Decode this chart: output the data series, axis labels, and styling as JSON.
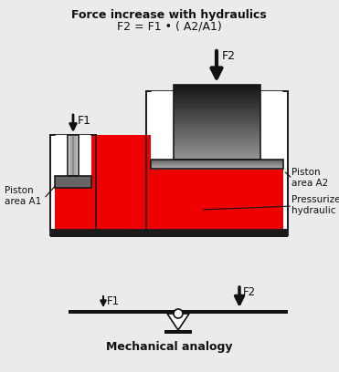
{
  "title_line1": "Force increase with hydraulics",
  "title_line2": "F2 = F1 • ( A2/A1)",
  "bg_color": "#ebebeb",
  "fluid_color": "#ee0000",
  "outline_color": "#1a1a1a",
  "label_piston_a1": "Piston\narea A1",
  "label_piston_a2": "Piston\narea A2",
  "label_fluid": "Pressurized\nhydraulic fluid",
  "label_f1_top": "F1",
  "label_f2_top": "F2",
  "label_f1_bottom": "F1",
  "label_f2_bottom": "F2",
  "label_analogy": "Mechanical analogy",
  "white": "#ffffff",
  "black": "#111111",
  "gray_light": "#cccccc",
  "gray_mid": "#888888",
  "gray_dark": "#444444",
  "gray_darker": "#222222"
}
